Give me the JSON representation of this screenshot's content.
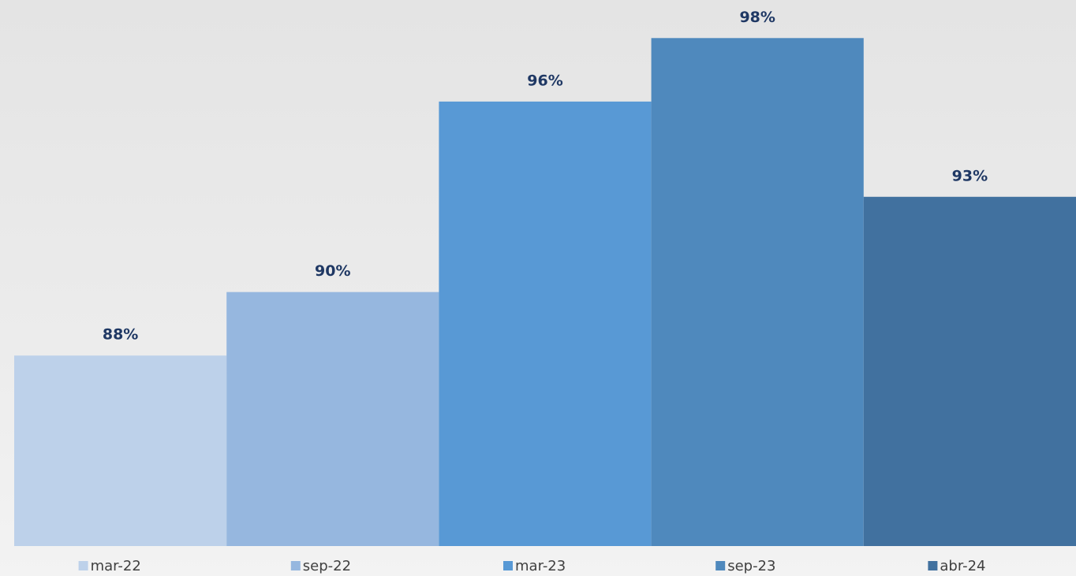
{
  "chart_data": {
    "type": "bar",
    "categories": [
      null
    ],
    "series": [
      {
        "name": "mar-22",
        "color": "#bdd1ea",
        "values": [
          88
        ],
        "value_labels": [
          "88%"
        ]
      },
      {
        "name": "sep-22",
        "color": "#96b7df",
        "values": [
          90
        ],
        "value_labels": [
          "90%"
        ]
      },
      {
        "name": "mar-23",
        "color": "#5899d5",
        "values": [
          96
        ],
        "value_labels": [
          "96%"
        ]
      },
      {
        "name": "sep-23",
        "color": "#4f89bd",
        "values": [
          98
        ],
        "value_labels": [
          "98%"
        ]
      },
      {
        "name": "abr-24",
        "color": "#41719f",
        "values": [
          93
        ],
        "value_labels": [
          "93%"
        ]
      }
    ],
    "ylim": [
      82,
      99
    ],
    "legend": "bottom"
  }
}
